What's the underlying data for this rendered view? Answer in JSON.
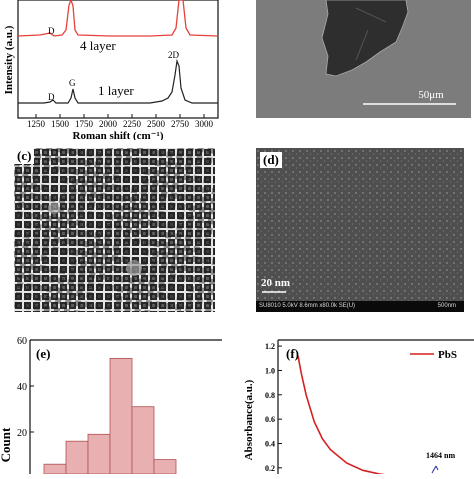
{
  "panel_a": {
    "ylabel": "Intensity (a.u.)",
    "xlabel": "Roman shift (cm⁻¹)",
    "xticks": [
      "1250",
      "1500",
      "1750",
      "2000",
      "2250",
      "2500",
      "2750",
      "3000"
    ],
    "traces": [
      {
        "name": "4 layer",
        "color": "#e8413c"
      },
      {
        "name": "1 layer",
        "color": "#222222"
      }
    ],
    "peak_labels": {
      "d_top": "D",
      "d_bottom": "D",
      "g": "G",
      "twod": "2D"
    }
  },
  "panel_b": {
    "scale_text": "50μm"
  },
  "panel_c": {
    "label": "(c)"
  },
  "panel_d": {
    "label": "(d)",
    "scale_text": "20 nm",
    "sem_info": "SU8010 5.0kV 8.6mm x80.0k SE(U)",
    "sem_scale": "500nm"
  },
  "panel_e": {
    "label": "(e)",
    "ylabel": "Count",
    "yticks": [
      "0",
      "20",
      "40",
      "60"
    ],
    "bar_color": "#e8b0b0",
    "bar_edge": "#b05050"
  },
  "panel_f": {
    "label": "(f)",
    "ylabel": "Absorbance(a.u.)",
    "yticks": [
      "0.2",
      "0.4",
      "0.6",
      "0.8",
      "1.0",
      "1.2"
    ],
    "legend": "PbS",
    "annotation": "1464 nm",
    "line_color": "#d42020"
  },
  "chart_data": [
    {
      "type": "histogram",
      "panel": "(e)",
      "ylabel": "Count",
      "ylim": [
        0,
        60
      ],
      "values": [
        6,
        16,
        19,
        52,
        31,
        8
      ]
    },
    {
      "type": "line",
      "panel": "(f)",
      "ylabel": "Absorbance(a.u.)",
      "ylim": [
        0.1,
        1.25
      ],
      "series": [
        {
          "name": "PbS",
          "x": [
            0,
            0.02,
            0.05,
            0.1,
            0.15,
            0.2,
            0.3,
            0.4,
            0.5,
            0.6,
            0.7,
            0.8,
            0.9,
            1.0
          ],
          "y": [
            1.12,
            0.98,
            0.8,
            0.58,
            0.44,
            0.35,
            0.24,
            0.18,
            0.15,
            0.13,
            0.12,
            0.12,
            0.13,
            0.13
          ]
        }
      ]
    }
  ]
}
